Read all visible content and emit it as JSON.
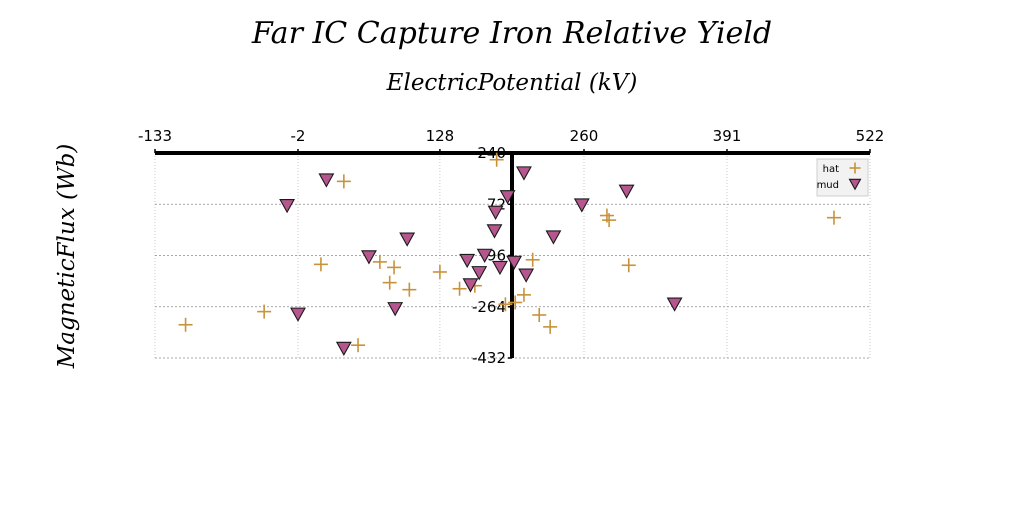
{
  "chart_data": {
    "type": "scatter",
    "title": "Far IC Capture Iron Relative Yield",
    "xlabel": "ElectricPotential (kV)",
    "ylabel": "MagneticFlux (Wb)",
    "xlim": [
      -133,
      522
    ],
    "ylim": [
      -432,
      240
    ],
    "x_ticks": [
      "-133",
      "-2",
      "128",
      "260",
      "391",
      "522"
    ],
    "y_ticks": [
      "240",
      "72",
      "-96",
      "-264",
      "-432"
    ],
    "grid": true,
    "legend_position": "top-right",
    "series": [
      {
        "name": "hat",
        "marker": "plus",
        "color": "#c8923a",
        "points": [
          [
            -105,
            -323
          ],
          [
            -33,
            -280
          ],
          [
            19,
            -125
          ],
          [
            40,
            147
          ],
          [
            53,
            -390
          ],
          [
            73,
            -117
          ],
          [
            82,
            -185
          ],
          [
            86,
            -135
          ],
          [
            100,
            -208
          ],
          [
            128,
            -150
          ],
          [
            146,
            -205
          ],
          [
            160,
            -195
          ],
          [
            180,
            218
          ],
          [
            188,
            -256
          ],
          [
            197,
            -250
          ],
          [
            205,
            -225
          ],
          [
            213,
            -110
          ],
          [
            219,
            -291
          ],
          [
            229,
            -330
          ],
          [
            281,
            35
          ],
          [
            283,
            20
          ],
          [
            301,
            -128
          ],
          [
            489,
            28
          ]
        ]
      },
      {
        "name": "mud",
        "marker": "triangle-down",
        "color": "#b5578e",
        "edge_color": "#1a1a1a",
        "points": [
          [
            -12,
            68
          ],
          [
            -2,
            -288
          ],
          [
            24,
            152
          ],
          [
            40,
            -400
          ],
          [
            63,
            -100
          ],
          [
            87,
            -270
          ],
          [
            98,
            -42
          ],
          [
            153,
            -112
          ],
          [
            156,
            -192
          ],
          [
            164,
            -152
          ],
          [
            169,
            -95
          ],
          [
            179,
            46
          ],
          [
            178,
            -15
          ],
          [
            183,
            -135
          ],
          [
            190,
            97
          ],
          [
            196,
            -118
          ],
          [
            205,
            175
          ],
          [
            207,
            -160
          ],
          [
            232,
            -35
          ],
          [
            258,
            70
          ],
          [
            299,
            115
          ],
          [
            343,
            -255
          ]
        ]
      }
    ]
  }
}
